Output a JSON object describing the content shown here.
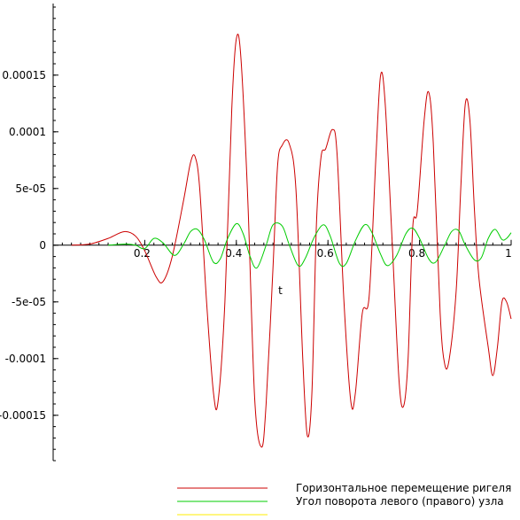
{
  "chart_data": {
    "type": "line",
    "xlabel": "t",
    "ylabel": "",
    "xlim": [
      0,
      1
    ],
    "ylim": [
      -0.00019,
      0.00021
    ],
    "grid": false,
    "legend_placement": "bottom",
    "x_ticks": [
      {
        "value": 0.2,
        "label": "0.2"
      },
      {
        "value": 0.4,
        "label": "0.4"
      },
      {
        "value": 0.6,
        "label": "0.6"
      },
      {
        "value": 0.8,
        "label": "0.8"
      },
      {
        "value": 1.0,
        "label": "1"
      }
    ],
    "y_ticks": [
      {
        "value": 0.00015,
        "label": "0.00015"
      },
      {
        "value": 0.0001,
        "label": "0.0001"
      },
      {
        "value": 5e-05,
        "label": "5e-05"
      },
      {
        "value": 0,
        "label": "0"
      },
      {
        "value": -5e-05,
        "label": "-5e-05"
      },
      {
        "value": -0.0001,
        "label": "-0.0001"
      },
      {
        "value": -0.00015,
        "label": "-0.00015"
      }
    ],
    "series": [
      {
        "name": "Горизонтальное перемещение ригеля",
        "color": "#cc0000",
        "points": [
          [
            0.04,
            0.0
          ],
          [
            0.08,
            1e-06
          ],
          [
            0.12,
            6e-06
          ],
          [
            0.155,
            1.2e-05
          ],
          [
            0.18,
            8e-06
          ],
          [
            0.2,
            -5e-06
          ],
          [
            0.225,
            -2.8e-05
          ],
          [
            0.24,
            -3.2e-05
          ],
          [
            0.26,
            -1e-05
          ],
          [
            0.285,
            4e-05
          ],
          [
            0.3,
            7.3e-05
          ],
          [
            0.31,
            7.8e-05
          ],
          [
            0.32,
            5e-05
          ],
          [
            0.335,
            -5e-05
          ],
          [
            0.35,
            -0.00013
          ],
          [
            0.36,
            -0.000138
          ],
          [
            0.375,
            -5e-05
          ],
          [
            0.39,
            0.00012
          ],
          [
            0.4,
            0.000182
          ],
          [
            0.41,
            0.000165
          ],
          [
            0.425,
            4e-05
          ],
          [
            0.44,
            -0.000135
          ],
          [
            0.455,
            -0.000178
          ],
          [
            0.465,
            -0.00014
          ],
          [
            0.48,
            -2e-05
          ],
          [
            0.49,
            7e-05
          ],
          [
            0.5,
            8.8e-05
          ],
          [
            0.515,
            9e-05
          ],
          [
            0.53,
            5e-05
          ],
          [
            0.545,
            -0.0001
          ],
          [
            0.555,
            -0.000168
          ],
          [
            0.565,
            -0.00013
          ],
          [
            0.575,
            2e-05
          ],
          [
            0.585,
            7.8e-05
          ],
          [
            0.595,
            8.5e-05
          ],
          [
            0.61,
            0.000102
          ],
          [
            0.62,
            8e-05
          ],
          [
            0.635,
            -5e-05
          ],
          [
            0.65,
            -0.000138
          ],
          [
            0.66,
            -0.00013
          ],
          [
            0.675,
            -6e-05
          ],
          [
            0.69,
            -4.5e-05
          ],
          [
            0.705,
            8e-05
          ],
          [
            0.715,
            0.00015
          ],
          [
            0.725,
            0.000125
          ],
          [
            0.74,
            5e-06
          ],
          [
            0.755,
            -0.000118
          ],
          [
            0.765,
            -0.000142
          ],
          [
            0.775,
            -0.0001
          ],
          [
            0.785,
            1.5e-05
          ],
          [
            0.795,
            3e-05
          ],
          [
            0.81,
            0.00011
          ],
          [
            0.82,
            0.000135
          ],
          [
            0.83,
            9e-05
          ],
          [
            0.845,
            -6e-05
          ],
          [
            0.855,
            -0.000105
          ],
          [
            0.865,
            -0.0001
          ],
          [
            0.88,
            -4e-05
          ],
          [
            0.89,
            5e-05
          ],
          [
            0.9,
            0.000125
          ],
          [
            0.91,
            0.00011
          ],
          [
            0.92,
            3e-05
          ],
          [
            0.93,
            -3e-05
          ],
          [
            0.95,
            -9e-05
          ],
          [
            0.96,
            -0.000115
          ],
          [
            0.97,
            -9e-05
          ],
          [
            0.98,
            -5e-05
          ],
          [
            0.99,
            -5e-05
          ],
          [
            1.0,
            -6.5e-05
          ]
        ]
      },
      {
        "name": "Угол поворота левого (правого) узла",
        "color": "#00cc00",
        "points": [
          [
            0.12,
            0.0
          ],
          [
            0.16,
            1e-06
          ],
          [
            0.18,
            0.0
          ],
          [
            0.2,
            -3e-06
          ],
          [
            0.22,
            6e-06
          ],
          [
            0.24,
            2e-06
          ],
          [
            0.265,
            -9e-06
          ],
          [
            0.285,
            1e-06
          ],
          [
            0.3,
            1.2e-05
          ],
          [
            0.315,
            1.4e-05
          ],
          [
            0.33,
            5e-06
          ],
          [
            0.35,
            -1.5e-05
          ],
          [
            0.365,
            -1.2e-05
          ],
          [
            0.38,
            5e-06
          ],
          [
            0.4,
            1.9e-05
          ],
          [
            0.415,
            1e-05
          ],
          [
            0.43,
            -1e-05
          ],
          [
            0.445,
            -2e-05
          ],
          [
            0.465,
            0.0
          ],
          [
            0.48,
            1.8e-05
          ],
          [
            0.5,
            1.7e-05
          ],
          [
            0.515,
            1e-06
          ],
          [
            0.535,
            -1.8e-05
          ],
          [
            0.55,
            -1.2e-05
          ],
          [
            0.57,
            7e-06
          ],
          [
            0.59,
            1.8e-05
          ],
          [
            0.605,
            8e-06
          ],
          [
            0.625,
            -1.6e-05
          ],
          [
            0.64,
            -1.6e-05
          ],
          [
            0.66,
            4e-06
          ],
          [
            0.68,
            1.8e-05
          ],
          [
            0.695,
            1.2e-05
          ],
          [
            0.715,
            -8e-06
          ],
          [
            0.73,
            -1.8e-05
          ],
          [
            0.75,
            -9e-06
          ],
          [
            0.77,
            1e-05
          ],
          [
            0.785,
            1.5e-05
          ],
          [
            0.8,
            6e-06
          ],
          [
            0.82,
            -1.2e-05
          ],
          [
            0.835,
            -1.5e-05
          ],
          [
            0.855,
            0.0
          ],
          [
            0.87,
            1.2e-05
          ],
          [
            0.885,
            1.3e-05
          ],
          [
            0.9,
            0.0
          ],
          [
            0.92,
            -1.3e-05
          ],
          [
            0.935,
            -1.1e-05
          ],
          [
            0.95,
            6e-06
          ],
          [
            0.965,
            1.4e-05
          ],
          [
            0.98,
            5e-06
          ],
          [
            0.99,
            6e-06
          ],
          [
            1.0,
            1.1e-05
          ]
        ]
      },
      {
        "name": "",
        "color": "#ffee00",
        "points": []
      }
    ]
  }
}
